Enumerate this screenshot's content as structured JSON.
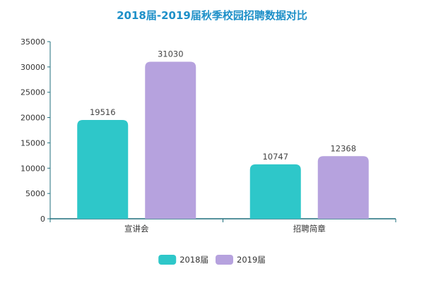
{
  "chart_data": {
    "type": "bar",
    "title": "2018届-2019届秋季校园招聘数据对比",
    "xlabel": "",
    "ylabel": "",
    "ylim": [
      0,
      35000
    ],
    "yticks": [
      0,
      5000,
      10000,
      15000,
      20000,
      25000,
      30000,
      35000
    ],
    "categories": [
      "宣讲会",
      "招聘简章"
    ],
    "series": [
      {
        "name": "2018届",
        "values": [
          19516,
          10747
        ],
        "color": "#2ec7c9"
      },
      {
        "name": "2019届",
        "values": [
          31030,
          12368
        ],
        "color": "#b6a2de"
      }
    ],
    "legend_position": "bottom-center",
    "grid": false,
    "data_labels": true,
    "title_color": "#1e90c8",
    "axis_color": "#1f6f7d"
  }
}
